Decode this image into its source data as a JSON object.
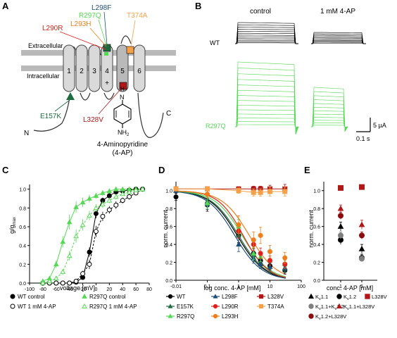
{
  "panel_labels": [
    "A",
    "B",
    "C",
    "D",
    "E"
  ],
  "colors": {
    "wt": "#000000",
    "e157k": "#1f6b3f",
    "l298f": "#1f4e79",
    "r297q": "#55d955",
    "l290r": "#e0201b",
    "l293h": "#ef7d1a",
    "l328v": "#b01818",
    "t374a": "#f6a14a",
    "kv11": "#000000",
    "kv12": "#000000",
    "kv11_12": "#7f7f7f",
    "kv11_l328v": "#b01818",
    "kv12_l328v": "#8b0d0d",
    "membrane": "#b9b9b9",
    "helix": "#d9d9d9"
  },
  "panel_a": {
    "membrane_top_label": "Extracellular",
    "membrane_bottom_label": "Intracellular",
    "helix_numbers": [
      "1",
      "2",
      "3",
      "4",
      "5",
      "6"
    ],
    "plus_sign": "+",
    "mutations": [
      {
        "label": "L298F",
        "color": "#1f4e79"
      },
      {
        "label": "R297Q",
        "color": "#55d955"
      },
      {
        "label": "T374A",
        "color": "#f6a14a"
      },
      {
        "label": "L290R",
        "color": "#e0201b"
      },
      {
        "label": "L293H",
        "color": "#ef7d1a"
      },
      {
        "label": "E157K",
        "color": "#1f6b3f"
      },
      {
        "label": "L328V",
        "color": "#b01818"
      }
    ],
    "n_term": "N",
    "c_term": "C",
    "drug_label_line1": "4-Aminopyridine",
    "drug_label_line2": "(4-AP)",
    "drug_atom_h": "H",
    "drug_atom_n": "N",
    "drug_group": "NH",
    "drug_group_sub": "2"
  },
  "panel_b": {
    "col_control": "control",
    "col_drug": "1 mM 4-AP",
    "row_wt": "WT",
    "row_mut": "R297Q",
    "scale_current": "5 µA",
    "scale_time": "0.1 s",
    "wt_control_traces": 12,
    "wt_drug_traces": 10,
    "mut_control_traces": 14,
    "mut_drug_traces": 12
  },
  "chart_data": [
    {
      "panel": "C",
      "type": "scatter",
      "xlabel": "voltage [mV]",
      "ylabel_main": "g/g",
      "ylabel_sub": "max",
      "xlim": [
        -100,
        80
      ],
      "ylim": [
        0,
        1.05
      ],
      "xticks": [
        -100,
        -80,
        -60,
        -40,
        -20,
        0,
        20,
        40,
        60,
        80
      ],
      "yticks": [
        0.0,
        0.2,
        0.4,
        0.6,
        0.8,
        1.0
      ],
      "grid": false,
      "legend": [
        {
          "label": "WT control",
          "marker": "filled-circle",
          "color": "#000000"
        },
        {
          "label": "R297Q control",
          "marker": "filled-triangle",
          "color": "#55d955"
        },
        {
          "label": "WT 1 mM 4-AP",
          "marker": "open-circle",
          "color": "#000000"
        },
        {
          "label": "R297Q 1 mM 4-AP",
          "marker": "open-triangle",
          "color": "#55d955"
        }
      ],
      "series": [
        {
          "name": "WT control",
          "color": "#000000",
          "marker": "filled-circle",
          "line": "solid",
          "x": [
            -80,
            -70,
            -60,
            -50,
            -40,
            -30,
            -20,
            -10,
            0,
            10,
            20,
            30,
            40,
            50,
            60,
            70
          ],
          "y": [
            0,
            0,
            0,
            0,
            0,
            0.01,
            0.06,
            0.33,
            0.74,
            0.88,
            0.93,
            0.97,
            0.98,
            0.99,
            1.0,
            1.0
          ],
          "err": [
            0,
            0,
            0,
            0,
            0,
            0.01,
            0.02,
            0.05,
            0.05,
            0.03,
            0.02,
            0.02,
            0.01,
            0.01,
            0.01,
            0.01
          ]
        },
        {
          "name": "WT 1 mM 4-AP",
          "color": "#000000",
          "marker": "open-circle",
          "line": "dashed",
          "x": [
            -80,
            -70,
            -60,
            -50,
            -40,
            -30,
            -20,
            -10,
            0,
            10,
            20,
            30,
            40,
            50,
            60,
            70
          ],
          "y": [
            0,
            0,
            0,
            0,
            0,
            0.02,
            0.1,
            0.2,
            0.55,
            0.71,
            0.78,
            0.83,
            0.88,
            0.92,
            0.96,
            1.0
          ],
          "err": [
            0,
            0,
            0,
            0,
            0,
            0.01,
            0.03,
            0.05,
            0.06,
            0.05,
            0.04,
            0.04,
            0.03,
            0.03,
            0.02,
            0.01
          ]
        },
        {
          "name": "R297Q control",
          "color": "#55d955",
          "marker": "filled-triangle",
          "line": "solid",
          "x": [
            -80,
            -70,
            -60,
            -50,
            -40,
            -30,
            -20,
            -10,
            0,
            10,
            20,
            30,
            40,
            50,
            60,
            70
          ],
          "y": [
            0.02,
            0.05,
            0.2,
            0.44,
            0.65,
            0.81,
            0.86,
            0.9,
            0.93,
            0.96,
            0.98,
            1.0,
            1.0,
            1.0,
            1.0,
            1.0
          ],
          "err": [
            0.01,
            0.02,
            0.04,
            0.06,
            0.08,
            0.06,
            0.05,
            0.04,
            0.03,
            0.03,
            0.02,
            0.02,
            0.01,
            0.01,
            0.01,
            0.01
          ]
        },
        {
          "name": "R297Q 1 mM 4-AP",
          "color": "#55d955",
          "marker": "open-triangle",
          "line": "dashed",
          "x": [
            -80,
            -70,
            -60,
            -50,
            -40,
            -30,
            -20,
            -10,
            0,
            10,
            20,
            30,
            40,
            50,
            60,
            70
          ],
          "y": [
            0.0,
            0.02,
            0.05,
            0.12,
            0.29,
            0.5,
            0.62,
            0.72,
            0.8,
            0.84,
            0.88,
            0.92,
            0.95,
            0.97,
            0.99,
            1.0
          ],
          "err": [
            0.01,
            0.01,
            0.02,
            0.03,
            0.05,
            0.07,
            0.06,
            0.05,
            0.04,
            0.04,
            0.03,
            0.03,
            0.02,
            0.02,
            0.01,
            0.01
          ]
        }
      ]
    },
    {
      "panel": "D",
      "type": "scatter",
      "xlabel": "log conc. 4-AP [mM]",
      "ylabel": "norm. current",
      "xscale": "log",
      "xlim": [
        0.01,
        100
      ],
      "xticks": [
        "-0.01",
        "0.1",
        "1",
        "10",
        "100"
      ],
      "ylim": [
        0,
        1.1
      ],
      "yticks": [
        0.0,
        0.2,
        0.4,
        0.6,
        0.8,
        1.0
      ],
      "grid": false,
      "legend": [
        {
          "label": "WT",
          "color": "#000000",
          "marker": "circle"
        },
        {
          "label": "E157K",
          "color": "#1f6b3f",
          "marker": "triangle"
        },
        {
          "label": "R297Q",
          "color": "#55d955",
          "marker": "triangle"
        },
        {
          "label": "L298F",
          "color": "#1f4e79",
          "marker": "triangle"
        },
        {
          "label": "L290R",
          "color": "#e0201b",
          "marker": "circle"
        },
        {
          "label": "L293H",
          "color": "#ef7d1a",
          "marker": "circle"
        },
        {
          "label": "L328V",
          "color": "#b01818",
          "marker": "square"
        },
        {
          "label": "T374A",
          "color": "#f6a14a",
          "marker": "square"
        }
      ],
      "x": [
        0.01,
        0.1,
        1,
        3,
        5,
        10,
        30
      ],
      "series": [
        {
          "name": "WT",
          "color": "#000000",
          "marker": "circle",
          "y": [
            0.93,
            0.84,
            0.5,
            0.3,
            0.22,
            0.16,
            0.11
          ],
          "err": [
            0.04,
            0.07,
            0.08,
            0.06,
            0.05,
            0.04,
            0.04
          ]
        },
        {
          "name": "E157K",
          "color": "#1f6b3f",
          "marker": "triangle",
          "y": [
            1.0,
            0.88,
            0.5,
            0.28,
            0.2,
            0.15,
            0.13
          ],
          "err": [
            0.02,
            0.06,
            0.09,
            0.07,
            0.05,
            0.04,
            0.04
          ]
        },
        {
          "name": "L298F",
          "color": "#1f4e79",
          "marker": "triangle",
          "y": [
            1.0,
            0.85,
            0.4,
            0.25,
            0.18,
            0.15,
            0.14
          ],
          "err": [
            0.02,
            0.06,
            0.08,
            0.06,
            0.05,
            0.04,
            0.04
          ]
        },
        {
          "name": "R297Q",
          "color": "#55d955",
          "marker": "triangle",
          "y": [
            1.02,
            0.86,
            0.6,
            0.3,
            0.26,
            0.22,
            0.18
          ],
          "err": [
            0.02,
            0.06,
            0.08,
            0.07,
            0.05,
            0.05,
            0.04
          ]
        },
        {
          "name": "L290R",
          "color": "#e0201b",
          "marker": "circle",
          "y": [
            1.02,
            0.96,
            0.55,
            0.4,
            0.3,
            0.22,
            0.18
          ],
          "err": [
            0.02,
            0.04,
            0.08,
            0.07,
            0.06,
            0.05,
            0.05
          ]
        },
        {
          "name": "L293H",
          "color": "#ef7d1a",
          "marker": "circle",
          "y": [
            1.02,
            0.96,
            0.62,
            0.45,
            0.5,
            0.32,
            0.25
          ],
          "err": [
            0.02,
            0.04,
            0.1,
            0.09,
            0.09,
            0.07,
            0.06
          ]
        },
        {
          "name": "L328V",
          "color": "#b01818",
          "marker": "square",
          "y": [
            1.02,
            1.02,
            1.02,
            1.02,
            1.02,
            1.02,
            1.02
          ],
          "err": [
            0.02,
            0.02,
            0.02,
            0.03,
            0.03,
            0.04,
            0.05
          ]
        },
        {
          "name": "T374A",
          "color": "#f6a14a",
          "marker": "square",
          "y": [
            1.02,
            1.02,
            1.0,
            0.98,
            0.98,
            0.99,
            0.99
          ],
          "err": [
            0.02,
            0.02,
            0.03,
            0.04,
            0.04,
            0.05,
            0.05
          ]
        }
      ],
      "fits": [
        {
          "name": "WT",
          "color": "#000000",
          "ic50": 0.9,
          "hill": 1.0
        },
        {
          "name": "E157K",
          "color": "#1f6b3f",
          "ic50": 1.0,
          "hill": 1.0
        },
        {
          "name": "L298F",
          "color": "#1f4e79",
          "ic50": 0.75,
          "hill": 1.0
        },
        {
          "name": "R297Q",
          "color": "#55d955",
          "ic50": 1.3,
          "hill": 1.0
        },
        {
          "name": "L290R",
          "color": "#e0201b",
          "ic50": 1.4,
          "hill": 1.1
        },
        {
          "name": "L293H",
          "color": "#ef7d1a",
          "ic50": 2.2,
          "hill": 1.0
        }
      ]
    },
    {
      "panel": "E",
      "type": "scatter",
      "xlabel": "conc. 4-AP [mM]",
      "ylabel": "norm. current",
      "categories": [
        "1",
        "5"
      ],
      "ylim": [
        0,
        1.1
      ],
      "yticks": [
        0.0,
        0.2,
        0.4,
        0.6,
        0.8,
        1.0
      ],
      "grid": false,
      "legend": [
        {
          "label": "K",
          "sub": "v",
          "rest": "1.1",
          "marker": "triangle",
          "color": "#000000"
        },
        {
          "label": "K",
          "sub": "v",
          "rest": "1.2",
          "marker": "circle",
          "color": "#000000"
        },
        {
          "label": "L328V",
          "marker": "square",
          "color": "#b01818"
        },
        {
          "label": "K",
          "sub": "v",
          "rest": "1.1+K",
          "sub2": "v",
          "rest2": "1.2",
          "marker": "circle",
          "color": "#7f7f7f"
        },
        {
          "label": "K",
          "sub": "v",
          "rest": "1.1+L328V",
          "marker": "triangle",
          "color": "#b01818"
        },
        {
          "label": "K",
          "sub": "v",
          "rest": "1.2+L328V",
          "marker": "circle",
          "color": "#8b0d0d"
        }
      ],
      "series": [
        {
          "name": "Kv1.1",
          "marker": "triangle",
          "color": "#000000",
          "values": [
            0.6,
            0.35
          ],
          "err": [
            0.05,
            0.05
          ]
        },
        {
          "name": "Kv1.2",
          "marker": "circle",
          "color": "#000000",
          "values": [
            0.45,
            0.25
          ],
          "err": [
            0.05,
            0.04
          ]
        },
        {
          "name": "L328V",
          "marker": "square",
          "color": "#b01818",
          "values": [
            1.03,
            1.04
          ],
          "err": [
            0,
            0
          ]
        },
        {
          "name": "Kv1.1+Kv1.2",
          "marker": "circle",
          "color": "#7f7f7f",
          "values": [
            0.5,
            0.24
          ],
          "err": [
            0.04,
            0.03
          ]
        },
        {
          "name": "Kv1.1+L328V",
          "marker": "triangle",
          "color": "#b01818",
          "values": [
            0.8,
            0.62
          ],
          "err": [
            0.04,
            0.05
          ]
        },
        {
          "name": "Kv1.2+L328V",
          "marker": "circle",
          "color": "#8b0d0d",
          "values": [
            0.72,
            0.5
          ],
          "err": [
            0.04,
            0.04
          ]
        }
      ]
    }
  ]
}
